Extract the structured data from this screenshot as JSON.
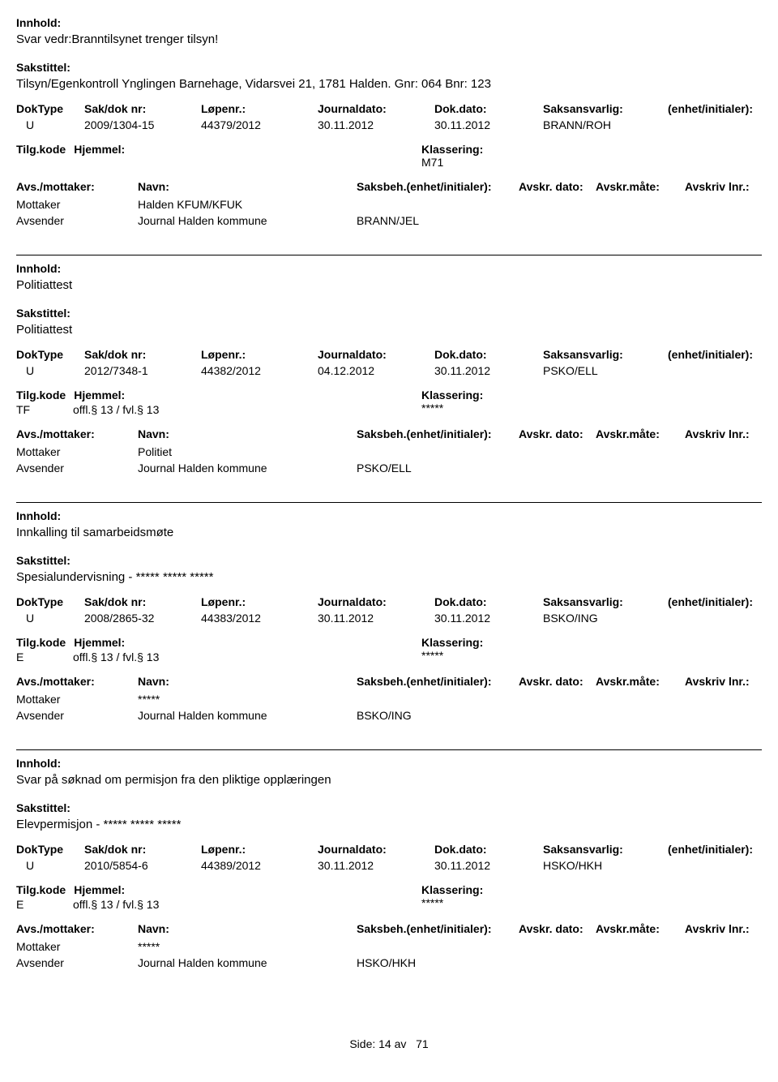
{
  "labels": {
    "innhold": "Innhold:",
    "sakstittel": "Sakstittel:",
    "doktype": "DokType",
    "sakdok": "Sak/dok nr:",
    "lopenr": "Løpenr.:",
    "journaldato": "Journaldato:",
    "dokdato": "Dok.dato:",
    "saksansvarlig": "Saksansvarlig:",
    "enhet": "(enhet/initialer):",
    "tilgkode": "Tilg.kode",
    "hjemmel": "Hjemmel:",
    "klassering": "Klassering:",
    "avsmottaker": "Avs./mottaker:",
    "navn": "Navn:",
    "saksbeh": "Saksbeh.(enhet/initialer):",
    "avskrdato": "Avskr. dato:",
    "avskrmate": "Avskr.måte:",
    "avskrivlnr": "Avskriv lnr.:",
    "mottaker": "Mottaker",
    "avsender": "Avsender"
  },
  "records": [
    {
      "innhold": "Svar vedr:Branntilsynet trenger tilsyn!",
      "sakstittel": "Tilsyn/Egenkontroll Ynglingen Barnehage, Vidarsvei 21, 1781 Halden.   Gnr: 064  Bnr: 123",
      "doktype": "U",
      "sakdok": "2009/1304-15",
      "lopenr": "44379/2012",
      "journaldato": "30.11.2012",
      "dokdato": "30.11.2012",
      "saksansvarlig": "BRANN/ROH",
      "tilgkode": "",
      "hjemmel": "",
      "klassering": "M71",
      "mottaker_navn": "Halden KFUM/KFUK",
      "avsender_navn": "Journal Halden kommune",
      "saksbeh": "BRANN/JEL"
    },
    {
      "innhold": "Politiattest",
      "sakstittel": "Politiattest",
      "doktype": "U",
      "sakdok": "2012/7348-1",
      "lopenr": "44382/2012",
      "journaldato": "04.12.2012",
      "dokdato": "30.11.2012",
      "saksansvarlig": "PSKO/ELL",
      "tilgkode": "TF",
      "hjemmel": "offl.§ 13 / fvl.§ 13",
      "klassering": "*****",
      "mottaker_navn": "Politiet",
      "avsender_navn": "Journal Halden kommune",
      "saksbeh": "PSKO/ELL"
    },
    {
      "innhold": "Innkalling til samarbeidsmøte",
      "sakstittel": "Spesialundervisning - ***** ***** *****",
      "doktype": "U",
      "sakdok": "2008/2865-32",
      "lopenr": "44383/2012",
      "journaldato": "30.11.2012",
      "dokdato": "30.11.2012",
      "saksansvarlig": "BSKO/ING",
      "tilgkode": "E",
      "hjemmel": "offl.§ 13 / fvl.§ 13",
      "klassering": "*****",
      "mottaker_navn": "*****",
      "avsender_navn": "Journal Halden kommune",
      "saksbeh": "BSKO/ING"
    },
    {
      "innhold": "Svar på søknad om permisjon fra den pliktige opplæringen",
      "sakstittel": "Elevpermisjon - ***** ***** *****",
      "doktype": "U",
      "sakdok": "2010/5854-6",
      "lopenr": "44389/2012",
      "journaldato": "30.11.2012",
      "dokdato": "30.11.2012",
      "saksansvarlig": "HSKO/HKH",
      "tilgkode": "E",
      "hjemmel": "offl.§ 13 / fvl.§ 13",
      "klassering": "*****",
      "mottaker_navn": "*****",
      "avsender_navn": "Journal Halden kommune",
      "saksbeh": "HSKO/HKH"
    }
  ],
  "footer": {
    "side": "Side:",
    "page": "14",
    "av": "av",
    "total": "71"
  }
}
